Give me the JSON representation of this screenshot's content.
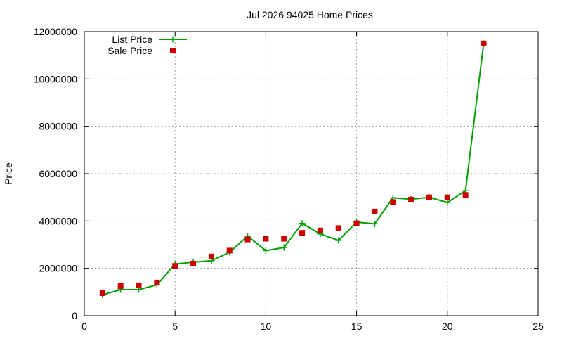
{
  "chart_data": {
    "type": "line",
    "title": "Jul 2026 94025 Home Prices",
    "xlabel": "",
    "ylabel": "Price",
    "xlim": [
      0,
      25
    ],
    "ylim": [
      0,
      12000000
    ],
    "xticks": [
      0,
      5,
      10,
      15,
      20,
      25
    ],
    "yticks": [
      0,
      2000000,
      4000000,
      6000000,
      8000000,
      10000000,
      12000000
    ],
    "xtick_labels": [
      "0",
      "5",
      "10",
      "15",
      "20",
      "25"
    ],
    "ytick_labels": [
      "0",
      "2000000",
      "4000000",
      "6000000",
      "8000000",
      "10000000",
      "12000000"
    ],
    "grid": true,
    "legend_position": "top-left",
    "series": [
      {
        "name": "List Price",
        "style": "line-with-markers",
        "color": "#00a000",
        "marker": "plus",
        "x": [
          1,
          2,
          3,
          4,
          5,
          6,
          7,
          8,
          9,
          10,
          11,
          12,
          13,
          14,
          15,
          16,
          17,
          18,
          19,
          20,
          21,
          22
        ],
        "y": [
          880000,
          1100000,
          1100000,
          1300000,
          2180000,
          2260000,
          2320000,
          2680000,
          3360000,
          2750000,
          2880000,
          3900000,
          3450000,
          3180000,
          3950000,
          3880000,
          4980000,
          4920000,
          5000000,
          4780000,
          5280000,
          11500000
        ]
      },
      {
        "name": "Sale Price",
        "style": "points",
        "color": "#cc0000",
        "marker": "square",
        "x": [
          1,
          2,
          3,
          4,
          5,
          6,
          7,
          8,
          9,
          10,
          11,
          12,
          13,
          14,
          15,
          16,
          17,
          18,
          19,
          20,
          21,
          22
        ],
        "y": [
          950000,
          1250000,
          1280000,
          1400000,
          2100000,
          2200000,
          2500000,
          2750000,
          3220000,
          3250000,
          3250000,
          3500000,
          3600000,
          3700000,
          3900000,
          4400000,
          4800000,
          4900000,
          5000000,
          5000000,
          5100000,
          11500000
        ]
      }
    ]
  }
}
